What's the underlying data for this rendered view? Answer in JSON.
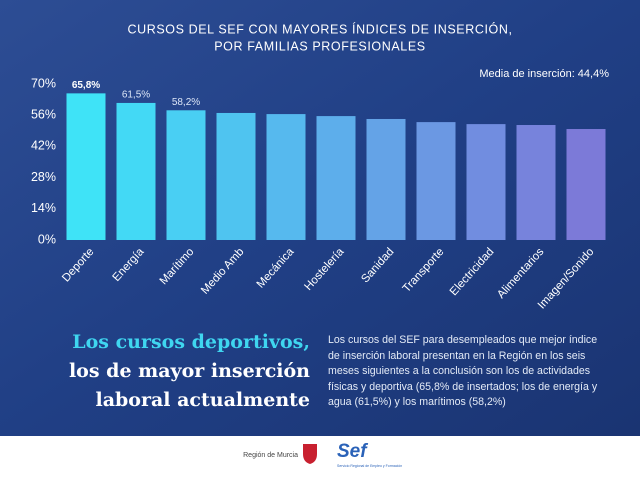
{
  "chart_data": {
    "type": "bar",
    "title": [
      "CURSOS DEL SEF CON MAYORES ÍNDICES DE INSERCIÓN,",
      "POR FAMILIAS PROFESIONALES"
    ],
    "annotation": "Media de inserción: 44,4%",
    "categories": [
      "Deporte",
      "Energía",
      "Marítimo",
      "Medio Amb",
      "Mecánica",
      "Hostelería",
      "Sanidad",
      "Transporte",
      "Electricidad",
      "Alimentarios",
      "Imagen/Sonido"
    ],
    "values": [
      65.8,
      61.5,
      58.2,
      57.0,
      56.5,
      55.6,
      54.3,
      52.9,
      52.0,
      51.6,
      49.8
    ],
    "value_labels": [
      "65,8%",
      "61,5%",
      "58,2%",
      null,
      null,
      null,
      null,
      null,
      null,
      null,
      null
    ],
    "colors": [
      "#3fe3f7",
      "#43d9f5",
      "#49cff3",
      "#4fc4f0",
      "#56b9ee",
      "#5daeeb",
      "#64a3e7",
      "#6b98e3",
      "#718de0",
      "#7783dc",
      "#7c7ad8"
    ],
    "ylim": [
      0,
      70
    ],
    "yticks": [
      {
        "value": 0,
        "label": "0%"
      },
      {
        "value": 14,
        "label": "14%"
      },
      {
        "value": 28,
        "label": "28%"
      },
      {
        "value": 42,
        "label": "42%"
      },
      {
        "value": 56,
        "label": "56%"
      },
      {
        "value": 70,
        "label": "70%"
      }
    ],
    "grid": false
  },
  "headline": [
    "Los cursos deportivos,",
    "los de mayor inserción",
    "laboral actualmente"
  ],
  "body": "Los cursos del SEF para desempleados que mejor índice de inserción laboral presentan en la Región en los seis meses siguientes a la conclusión son los de actividades físicas y deportiva (65,8% de insertados; los de energía y agua (61,5%) y los marítimos (58,2%)",
  "footer": {
    "region": "Región de Murcia",
    "logo": "Sef",
    "logo_sub": "Servicio Regional de Empleo y Formación"
  }
}
